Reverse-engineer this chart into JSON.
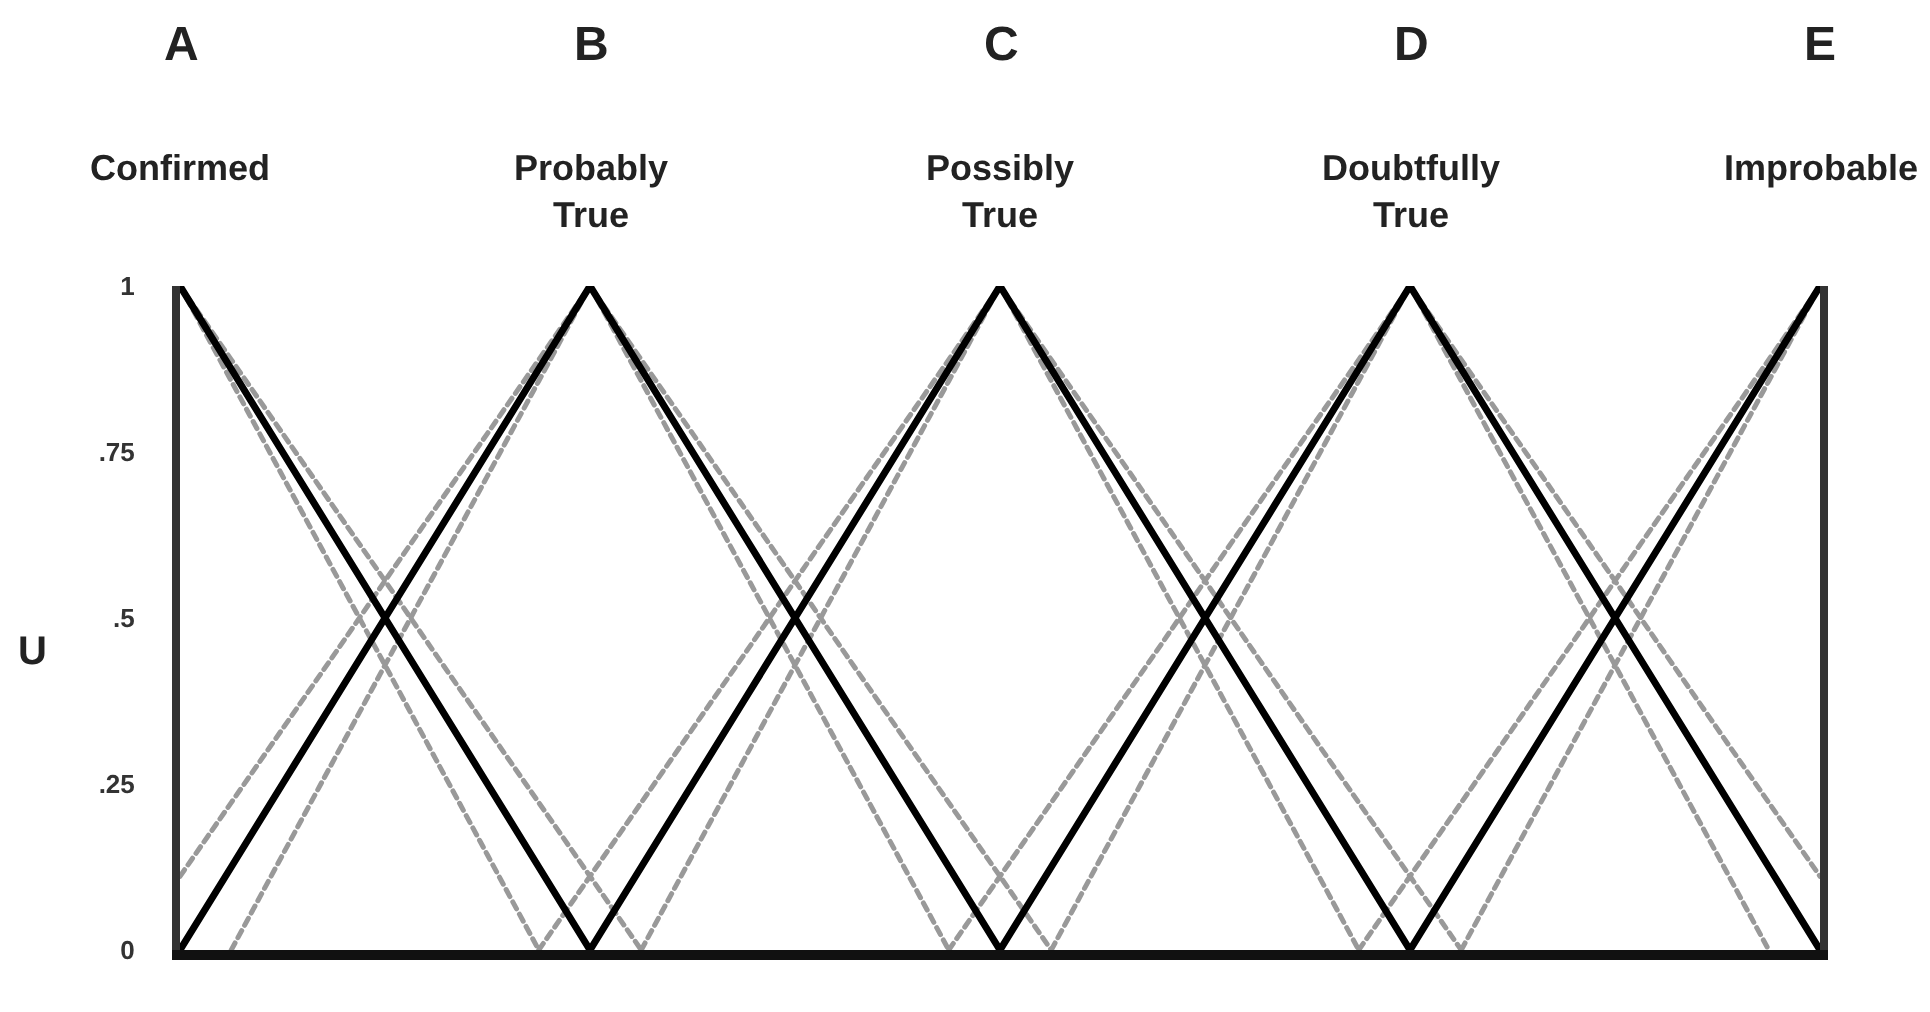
{
  "chart_data": {
    "type": "line",
    "ylabel": "U",
    "categories": [
      null,
      null,
      null,
      null,
      null,
      null,
      null,
      null,
      null,
      null,
      null,
      null,
      null,
      null,
      null,
      null,
      null,
      null,
      null,
      null,
      null,
      null,
      null,
      null,
      null,
      null,
      null,
      null,
      null,
      null,
      null,
      null,
      null
    ],
    "ylim": [
      0,
      1
    ],
    "yticks": [
      0,
      {
        "value": 0.25,
        "label": ".25"
      },
      {
        "value": 0.5,
        "label": ".5"
      },
      {
        "value": 0.75,
        "label": ".75"
      },
      1
    ],
    "tick_labels": "y",
    "series": [
      {
        "color": "#999999",
        "line_style": "dashed",
        "values": [
          1,
          0.889,
          0.778,
          0.667,
          0.556,
          0.444,
          0.333,
          0.222,
          0.111,
          0,
          null,
          null,
          null,
          null,
          null,
          null,
          null,
          null,
          null,
          null,
          null,
          null,
          null,
          null,
          null,
          null,
          null,
          null,
          null,
          null,
          null,
          null,
          null
        ]
      },
      {
        "color": "#999999",
        "line_style": "dashed",
        "values": [
          1,
          0.857,
          0.714,
          0.571,
          0.429,
          0.286,
          0.143,
          0,
          null,
          null,
          null,
          null,
          null,
          null,
          null,
          null,
          null,
          null,
          null,
          null,
          null,
          null,
          null,
          null,
          null,
          null,
          null,
          null,
          null,
          null,
          null,
          null,
          null
        ]
      },
      {
        "color": "#999999",
        "line_style": "dashed",
        "values": [
          0.111,
          0.222,
          0.333,
          0.444,
          0.556,
          0.667,
          0.778,
          0.889,
          1,
          0.889,
          0.778,
          0.667,
          0.556,
          0.444,
          0.333,
          0.222,
          0.111,
          0,
          null,
          null,
          null,
          null,
          null,
          null,
          null,
          null,
          null,
          null,
          null,
          null,
          null,
          null,
          null
        ]
      },
      {
        "color": "#999999",
        "line_style": "dashed",
        "values": [
          null,
          0,
          0.143,
          0.286,
          0.429,
          0.571,
          0.714,
          0.857,
          1,
          0.857,
          0.714,
          0.571,
          0.429,
          0.286,
          0.143,
          0,
          null,
          null,
          null,
          null,
          null,
          null,
          null,
          null,
          null,
          null,
          null,
          null,
          null,
          null,
          null,
          null,
          null
        ]
      },
      {
        "color": "#999999",
        "line_style": "dashed",
        "values": [
          null,
          null,
          null,
          null,
          null,
          null,
          null,
          0,
          0.111,
          0.222,
          0.333,
          0.444,
          0.556,
          0.667,
          0.778,
          0.889,
          1,
          0.889,
          0.778,
          0.667,
          0.556,
          0.444,
          0.333,
          0.222,
          0.111,
          0,
          null,
          null,
          null,
          null,
          null,
          null,
          null
        ]
      },
      {
        "color": "#999999",
        "line_style": "dashed",
        "values": [
          null,
          null,
          null,
          null,
          null,
          null,
          null,
          null,
          null,
          0,
          0.143,
          0.286,
          0.429,
          0.571,
          0.714,
          0.857,
          1,
          0.857,
          0.714,
          0.571,
          0.429,
          0.286,
          0.143,
          0,
          null,
          null,
          null,
          null,
          null,
          null,
          null,
          null,
          null
        ]
      },
      {
        "color": "#999999",
        "line_style": "dashed",
        "values": [
          null,
          null,
          null,
          null,
          null,
          null,
          null,
          null,
          null,
          null,
          null,
          null,
          null,
          null,
          null,
          0,
          0.111,
          0.222,
          0.333,
          0.444,
          0.556,
          0.667,
          0.778,
          0.889,
          1,
          0.889,
          0.778,
          0.667,
          0.556,
          0.444,
          0.333,
          0.222,
          0.111
        ]
      },
      {
        "color": "#999999",
        "line_style": "dashed",
        "values": [
          null,
          null,
          null,
          null,
          null,
          null,
          null,
          null,
          null,
          null,
          null,
          null,
          null,
          null,
          null,
          null,
          null,
          0,
          0.143,
          0.286,
          0.429,
          0.571,
          0.714,
          0.857,
          1,
          0.857,
          0.714,
          0.571,
          0.429,
          0.286,
          0.143,
          0,
          null
        ]
      },
      {
        "color": "#999999",
        "line_style": "dashed",
        "values": [
          null,
          null,
          null,
          null,
          null,
          null,
          null,
          null,
          null,
          null,
          null,
          null,
          null,
          null,
          null,
          null,
          null,
          null,
          null,
          null,
          null,
          null,
          null,
          0,
          0.111,
          0.222,
          0.333,
          0.444,
          0.556,
          0.667,
          0.778,
          0.889,
          1
        ]
      },
      {
        "color": "#999999",
        "line_style": "dashed",
        "values": [
          null,
          null,
          null,
          null,
          null,
          null,
          null,
          null,
          null,
          null,
          null,
          null,
          null,
          null,
          null,
          null,
          null,
          null,
          null,
          null,
          null,
          null,
          null,
          null,
          null,
          0,
          0.143,
          0.286,
          0.429,
          0.571,
          0.714,
          0.857,
          1
        ]
      },
      {
        "color": "#000000",
        "line_style": "solid",
        "values": [
          1,
          0.875,
          0.75,
          0.625,
          0.5,
          0.375,
          0.25,
          0.125,
          0,
          null,
          null,
          null,
          null,
          null,
          null,
          null,
          null,
          null,
          null,
          null,
          null,
          null,
          null,
          null,
          null,
          null,
          null,
          null,
          null,
          null,
          null,
          null,
          null
        ]
      },
      {
        "color": "#000000",
        "line_style": "solid",
        "values": [
          0,
          0.125,
          0.25,
          0.375,
          0.5,
          0.625,
          0.75,
          0.875,
          1,
          0.875,
          0.75,
          0.625,
          0.5,
          0.375,
          0.25,
          0.125,
          0,
          null,
          null,
          null,
          null,
          null,
          null,
          null,
          null,
          null,
          null,
          null,
          null,
          null,
          null,
          null,
          null
        ]
      },
      {
        "color": "#000000",
        "line_style": "solid",
        "values": [
          null,
          null,
          null,
          null,
          null,
          null,
          null,
          null,
          0,
          0.125,
          0.25,
          0.375,
          0.5,
          0.625,
          0.75,
          0.875,
          1,
          0.875,
          0.75,
          0.625,
          0.5,
          0.375,
          0.25,
          0.125,
          0,
          null,
          null,
          null,
          null,
          null,
          null,
          null,
          null
        ]
      },
      {
        "color": "#000000",
        "line_style": "solid",
        "values": [
          null,
          null,
          null,
          null,
          null,
          null,
          null,
          null,
          null,
          null,
          null,
          null,
          null,
          null,
          null,
          null,
          0,
          0.125,
          0.25,
          0.375,
          0.5,
          0.625,
          0.75,
          0.875,
          1,
          0.875,
          0.75,
          0.625,
          0.5,
          0.375,
          0.25,
          0.125,
          0
        ]
      },
      {
        "color": "#000000",
        "line_style": "solid",
        "values": [
          null,
          null,
          null,
          null,
          null,
          null,
          null,
          null,
          null,
          null,
          null,
          null,
          null,
          null,
          null,
          null,
          null,
          null,
          null,
          null,
          null,
          null,
          null,
          null,
          0,
          0.125,
          0.25,
          0.375,
          0.5,
          0.625,
          0.75,
          0.875,
          1
        ]
      }
    ],
    "annotations": [
      "A",
      "Confirmed",
      "B",
      "Probably\nTrue",
      "C",
      "Possibly\nTrue",
      "D",
      "Doubtfully\nTrue",
      "E",
      "Improbable"
    ]
  }
}
